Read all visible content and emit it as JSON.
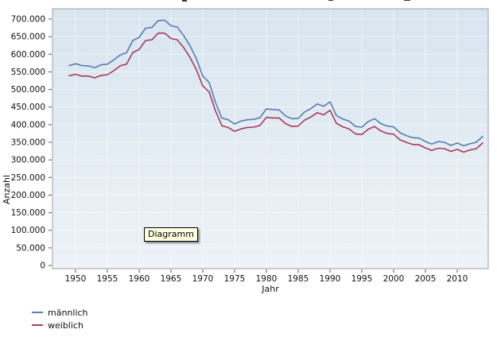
{
  "tooltip": {
    "label": "Diagramm",
    "background": "#ffffe1"
  },
  "legend": {
    "items": [
      {
        "label": "männlich",
        "color": "#567db1"
      },
      {
        "label": "weiblich",
        "color": "#a93a5e"
      }
    ]
  },
  "chart_data": {
    "type": "line",
    "title": "",
    "xlabel": "Jahr",
    "ylabel": "Anzahl",
    "grid": true,
    "legend_position": "bottom-left",
    "plot_background": [
      "#d8e5ef",
      "#edf2f7"
    ],
    "xlim": [
      1946.375,
      2014.875
    ],
    "ylim": [
      0,
      700000
    ],
    "x_tick_values": [
      1950,
      1955,
      1960,
      1965,
      1970,
      1975,
      1980,
      1985,
      1990,
      1995,
      2000,
      2005,
      2010
    ],
    "x_tick_labels": [
      "1950",
      "1955",
      "1960",
      "1965",
      "1970",
      "1975",
      "1980",
      "1985",
      "1990",
      "1995",
      "2000",
      "2005",
      "2010"
    ],
    "y_tick_values": [
      0,
      50000,
      100000,
      150000,
      200000,
      250000,
      300000,
      350000,
      400000,
      450000,
      500000,
      550000,
      600000,
      650000,
      700000
    ],
    "y_tick_labels": [
      "0",
      "50.000",
      "100.000",
      "150.000",
      "200.000",
      "250.000",
      "300.000",
      "350.000",
      "400.000",
      "450.000",
      "500.000",
      "550.000",
      "600.000",
      "650.000",
      "700.000"
    ],
    "x": [
      1949,
      1950,
      1951,
      1952,
      1953,
      1954,
      1955,
      1956,
      1957,
      1958,
      1959,
      1960,
      1961,
      1962,
      1963,
      1964,
      1965,
      1966,
      1967,
      1968,
      1969,
      1970,
      1971,
      1972,
      1973,
      1974,
      1975,
      1976,
      1977,
      1978,
      1979,
      1980,
      1981,
      1982,
      1983,
      1984,
      1985,
      1986,
      1987,
      1988,
      1989,
      1990,
      1991,
      1992,
      1993,
      1994,
      1995,
      1996,
      1997,
      1998,
      1999,
      2000,
      2001,
      2002,
      2003,
      2004,
      2005,
      2006,
      2007,
      2008,
      2009,
      2010,
      2011,
      2012,
      2013,
      2014
    ],
    "series": [
      {
        "name": "männlich",
        "color": "#567db1",
        "values": [
          568000,
          573000,
          568000,
          567000,
          562000,
          570000,
          572000,
          584000,
          598000,
          604000,
          639000,
          648000,
          674000,
          676000,
          696000,
          697000,
          681000,
          677000,
          653000,
          624000,
          587000,
          538000,
          520000,
          463000,
          419000,
          414000,
          402000,
          410000,
          414000,
          415000,
          420000,
          445000,
          443000,
          442000,
          425000,
          417000,
          418000,
          436000,
          446000,
          459000,
          452000,
          465000,
          426000,
          416000,
          410000,
          395000,
          393000,
          409000,
          417000,
          403000,
          396000,
          394000,
          377000,
          369000,
          363000,
          362000,
          352000,
          345000,
          352000,
          350000,
          341000,
          348000,
          340000,
          346000,
          350000,
          367000
        ]
      },
      {
        "name": "weiblich",
        "color": "#a93a5e",
        "values": [
          539000,
          543000,
          538000,
          538000,
          533000,
          540000,
          542000,
          553000,
          567000,
          572000,
          605000,
          614000,
          639000,
          641000,
          660000,
          660000,
          645000,
          641000,
          619000,
          591000,
          556000,
          510000,
          493000,
          439000,
          397000,
          392000,
          381000,
          388000,
          392000,
          393000,
          398000,
          421000,
          419000,
          419000,
          403000,
          395000,
          396000,
          413000,
          422000,
          434000,
          428000,
          441000,
          404000,
          394000,
          388000,
          374000,
          372000,
          387000,
          395000,
          382000,
          375000,
          373000,
          357000,
          350000,
          344000,
          343000,
          334000,
          327000,
          333000,
          332000,
          324000,
          330000,
          322000,
          328000,
          332000,
          348000
        ]
      }
    ]
  }
}
